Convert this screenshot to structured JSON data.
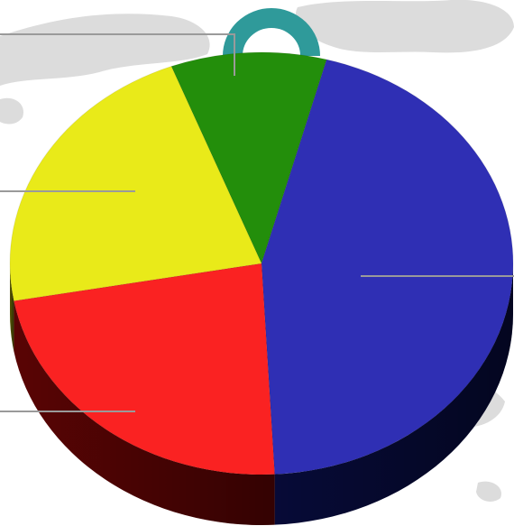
{
  "chart_data": {
    "type": "pie",
    "title": "",
    "start_angle_deg": -111,
    "slices": [
      {
        "label": "",
        "value": 10,
        "color": "#238e0b"
      },
      {
        "label": "",
        "value": 45,
        "color": "#2f2fb4"
      },
      {
        "label": "",
        "value": 23,
        "color": "#fa2222"
      },
      {
        "label": "",
        "value": 22,
        "color": "#e9ea19"
      }
    ],
    "legend": "none",
    "style": "3d"
  },
  "decor": {
    "background": "world-map",
    "map_color": "#dcdcdc",
    "ring_color": "#2f9a9a",
    "leader_line_color": "#9a9a9a",
    "side_colors": [
      "#103a05",
      "#070b3a",
      "#5e0404",
      "#5a5a05"
    ]
  }
}
